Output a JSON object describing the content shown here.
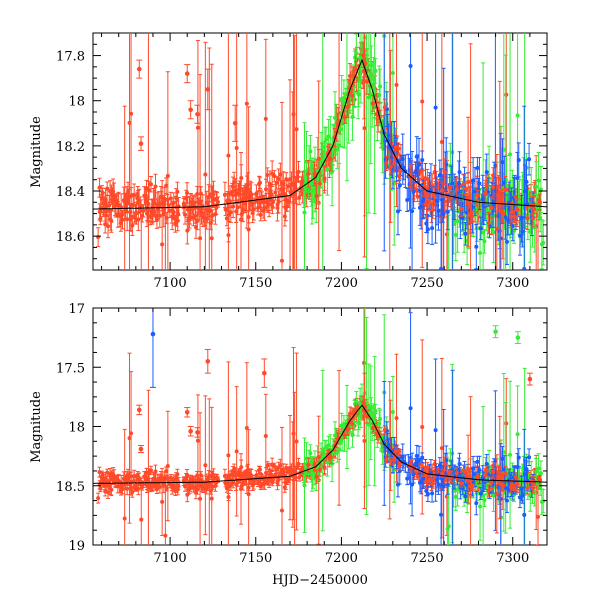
{
  "chart_data": [
    {
      "type": "scatter",
      "title": "",
      "xlabel": "",
      "ylabel": "Magnitude",
      "xlim": [
        7055,
        7320
      ],
      "ylim": [
        18.75,
        17.7
      ],
      "y_inverted": true,
      "x_ticks": [
        7100,
        7150,
        7200,
        7250,
        7300
      ],
      "x_tick_labels": [
        "7100",
        "7150",
        "7200",
        "7250",
        "7300"
      ],
      "y_ticks": [
        17.8,
        18.0,
        18.2,
        18.4,
        18.6
      ],
      "y_tick_labels": [
        "17.8",
        "18",
        "18.2",
        "18.4",
        "18.6"
      ],
      "model_curve": {
        "color": "#000000",
        "x": [
          7055,
          7120,
          7170,
          7185,
          7195,
          7205,
          7212,
          7218,
          7225,
          7235,
          7250,
          7280,
          7320
        ],
        "y": [
          18.48,
          18.47,
          18.42,
          18.34,
          18.2,
          17.95,
          17.82,
          17.95,
          18.15,
          18.3,
          18.4,
          18.45,
          18.47
        ]
      },
      "series": [
        {
          "name": "red",
          "color": "#ff4a2a",
          "x_ranges": [
            [
              7058,
              7105
            ],
            [
              7108,
              7128
            ],
            [
              7132,
              7235
            ],
            [
              7240,
              7316
            ]
          ],
          "scatter": 0.045,
          "error_bar": 0.04,
          "outlier_rate": 0.07
        },
        {
          "name": "green",
          "color": "#33ee33",
          "x_ranges": [
            [
              7178,
              7232
            ],
            [
              7262,
              7318
            ]
          ],
          "scatter": 0.08,
          "error_bar": 0.1,
          "outlier_rate": 0.12
        },
        {
          "name": "blue",
          "color": "#1a5cff",
          "x_ranges": [
            [
              7225,
              7312
            ]
          ],
          "scatter": 0.09,
          "error_bar": 0.08,
          "outlier_rate": 0.1
        }
      ],
      "highlighted_points": [
        {
          "series": "red",
          "x": 7082,
          "y": 17.86,
          "err": 0.04
        },
        {
          "series": "red",
          "x": 7083,
          "y": 18.19,
          "err": 0.03
        },
        {
          "series": "red",
          "x": 7110,
          "y": 17.88,
          "err": 0.04
        },
        {
          "series": "red",
          "x": 7112,
          "y": 18.04,
          "err": 0.04
        },
        {
          "series": "red",
          "x": 7116,
          "y": 18.06,
          "err": 0.04
        },
        {
          "series": "red",
          "x": 7122,
          "y": 17.95,
          "err": 0.09
        },
        {
          "series": "red",
          "x": 7138,
          "y": 18.1,
          "err": 0.08
        }
      ]
    },
    {
      "type": "scatter",
      "title": "",
      "xlabel": "HJD−2450000",
      "ylabel": "Magnitude",
      "xlim": [
        7055,
        7320
      ],
      "ylim": [
        19.0,
        17.0
      ],
      "y_inverted": true,
      "x_ticks": [
        7100,
        7150,
        7200,
        7250,
        7300
      ],
      "x_tick_labels": [
        "7100",
        "7150",
        "7200",
        "7250",
        "7300"
      ],
      "y_ticks": [
        17.0,
        17.5,
        18.0,
        18.5,
        19.0
      ],
      "y_tick_labels": [
        "17",
        "17.5",
        "18",
        "18.5",
        "19"
      ],
      "model_curve": {
        "color": "#000000",
        "x": [
          7055,
          7120,
          7170,
          7185,
          7195,
          7205,
          7212,
          7218,
          7225,
          7235,
          7250,
          7280,
          7320
        ],
        "y": [
          18.48,
          18.47,
          18.42,
          18.34,
          18.2,
          17.95,
          17.82,
          17.95,
          18.15,
          18.3,
          18.4,
          18.45,
          18.47
        ]
      },
      "series": [
        {
          "name": "red",
          "color": "#ff4a2a",
          "x_ranges": [
            [
              7058,
              7105
            ],
            [
              7108,
              7128
            ],
            [
              7132,
              7235
            ],
            [
              7240,
              7316
            ]
          ],
          "scatter": 0.045,
          "error_bar": 0.04,
          "outlier_rate": 0.07
        },
        {
          "name": "green",
          "color": "#33ee33",
          "x_ranges": [
            [
              7178,
              7232
            ],
            [
              7262,
              7318
            ]
          ],
          "scatter": 0.08,
          "error_bar": 0.1,
          "outlier_rate": 0.12
        },
        {
          "name": "blue",
          "color": "#1a5cff",
          "x_ranges": [
            [
              7225,
              7312
            ]
          ],
          "scatter": 0.09,
          "error_bar": 0.08,
          "outlier_rate": 0.1
        }
      ],
      "highlighted_points": [
        {
          "series": "blue",
          "x": 7090,
          "y": 17.22,
          "err": 0.45
        },
        {
          "series": "red",
          "x": 7082,
          "y": 17.86,
          "err": 0.04
        },
        {
          "series": "red",
          "x": 7083,
          "y": 18.19,
          "err": 0.03
        },
        {
          "series": "red",
          "x": 7110,
          "y": 17.88,
          "err": 0.04
        },
        {
          "series": "red",
          "x": 7112,
          "y": 18.04,
          "err": 0.04
        },
        {
          "series": "red",
          "x": 7116,
          "y": 18.05,
          "err": 0.04
        },
        {
          "series": "red",
          "x": 7122,
          "y": 17.45,
          "err": 0.1
        },
        {
          "series": "red",
          "x": 7155,
          "y": 17.55,
          "err": 0.12
        },
        {
          "series": "green",
          "x": 7290,
          "y": 17.2,
          "err": 0.05
        },
        {
          "series": "green",
          "x": 7303,
          "y": 17.25,
          "err": 0.05
        },
        {
          "series": "red",
          "x": 7310,
          "y": 17.6,
          "err": 0.05
        }
      ]
    }
  ]
}
